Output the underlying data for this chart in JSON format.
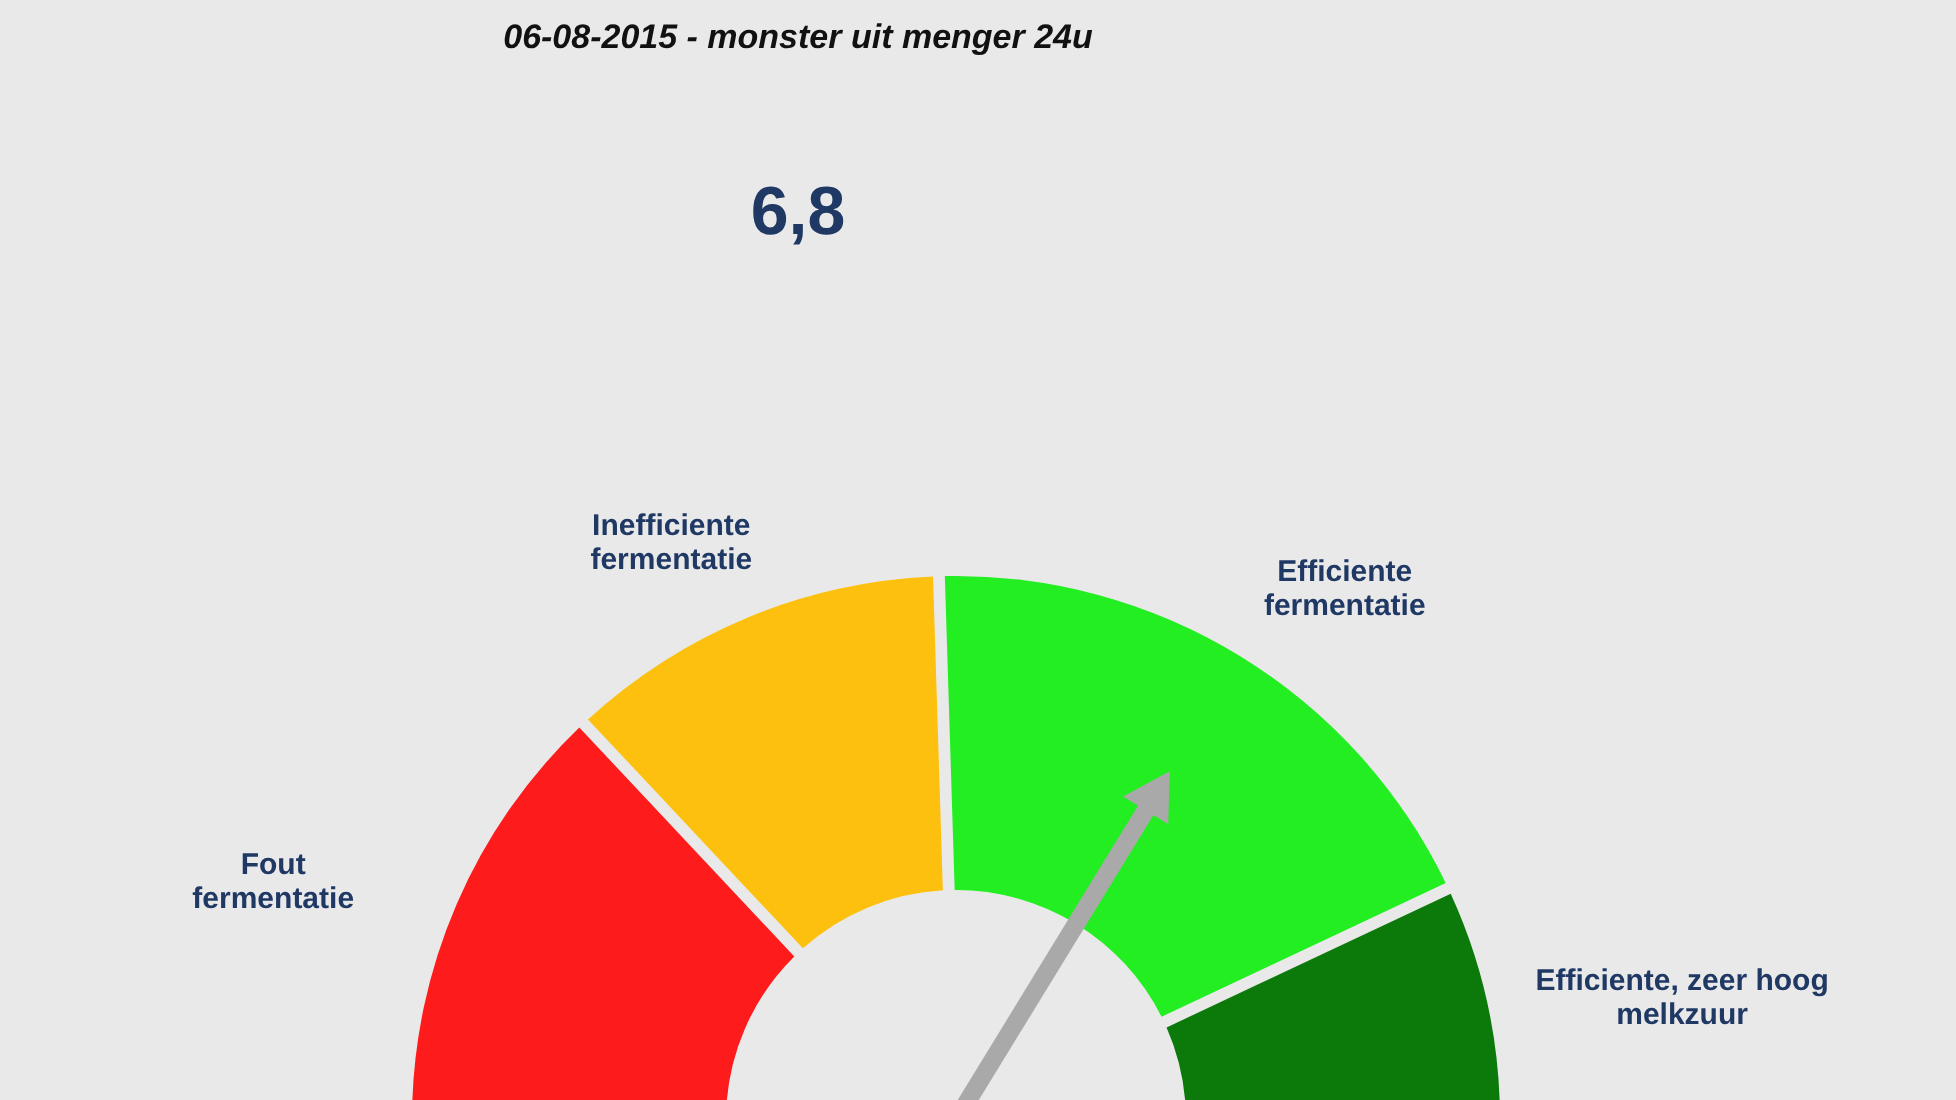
{
  "chart_data": {
    "type": "donut",
    "title": "06-08-2015 - monster uit menger 24u",
    "subtitle": "6,8",
    "categories": [
      "Fout\nfermentatie",
      "Inefficiente\nfermentatie",
      "Efficiente\nfermentatie",
      "Efficiente, zeer hoog\nmelkzuur"
    ],
    "values": [
      26,
      23,
      37,
      14
    ],
    "colors": [
      "#fe1b1b",
      "#fdc00e",
      "#22ee22",
      "#0b7a0b"
    ],
    "needle": "Efficiente\nfermentatie"
  }
}
